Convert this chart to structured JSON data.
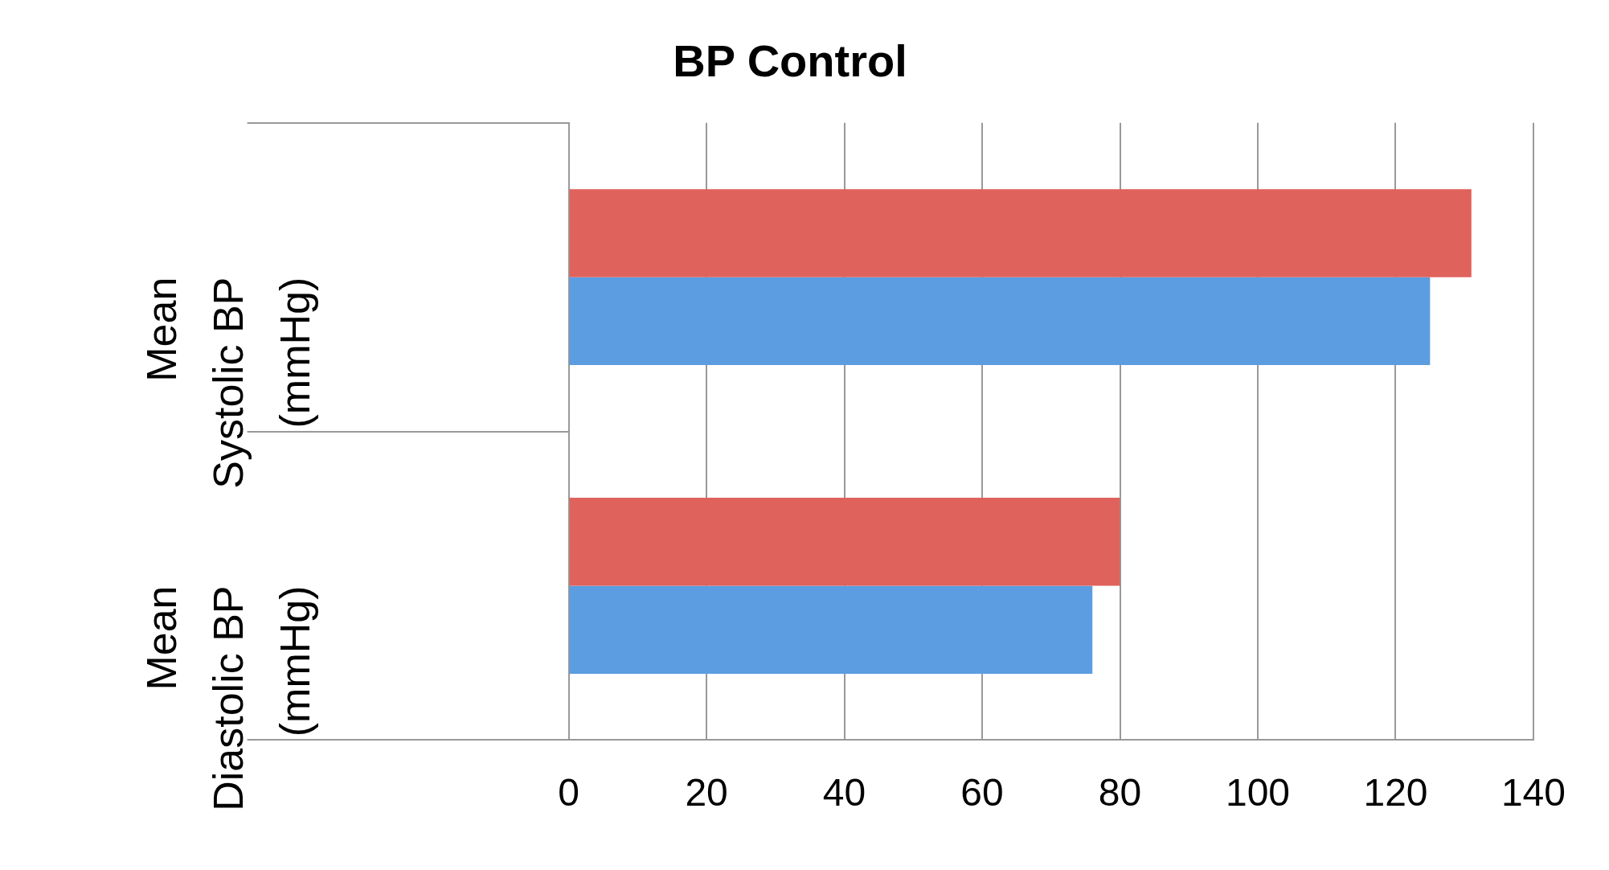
{
  "chart_data": {
    "type": "bar",
    "orientation": "horizontal",
    "title": "BP Control",
    "categories": [
      "Mean Systolic BP (mmHg)",
      "Mean Diastolic BP (mmHg)"
    ],
    "series": [
      {
        "color": "#e0625c",
        "values": [
          131,
          80
        ]
      },
      {
        "color": "#5b9de0",
        "values": [
          125,
          76
        ]
      }
    ],
    "xlim": [
      0,
      140
    ],
    "xticks": [
      0,
      20,
      40,
      60,
      80,
      100,
      120,
      140
    ],
    "grid": "x",
    "legend": false
  }
}
